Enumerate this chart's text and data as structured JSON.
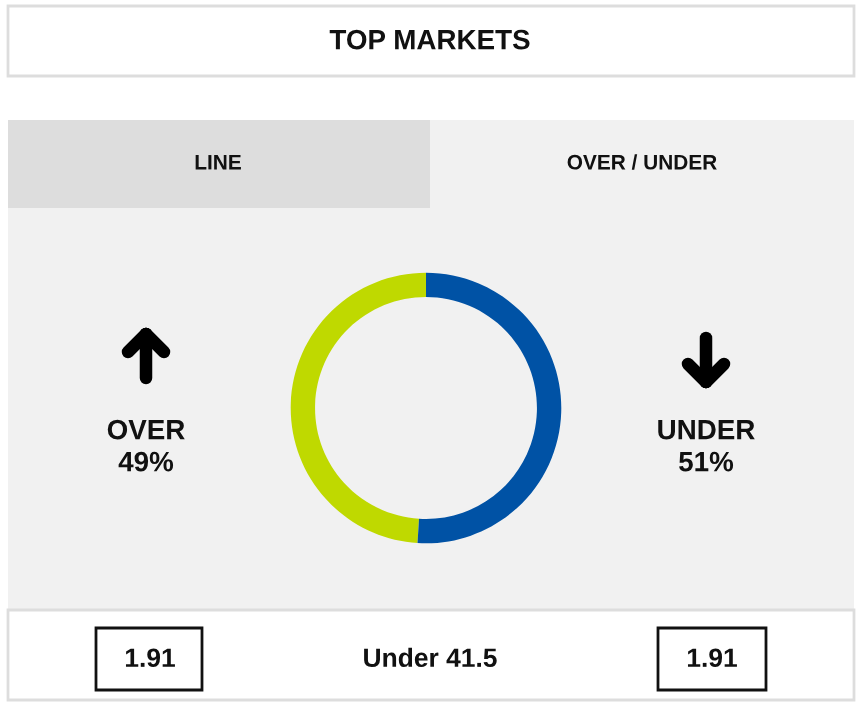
{
  "chart_data": {
    "type": "donut",
    "title": "TOP MARKETS",
    "categories": [
      "OVER",
      "UNDER"
    ],
    "values": [
      49,
      51
    ],
    "colors": [
      "#bfd900",
      "#0052a5"
    ],
    "value_labels": [
      "49%",
      "51%"
    ],
    "annotations": [
      "LINE",
      "OVER / UNDER",
      "1.91",
      "Under 41.5",
      "1.91"
    ]
  }
}
